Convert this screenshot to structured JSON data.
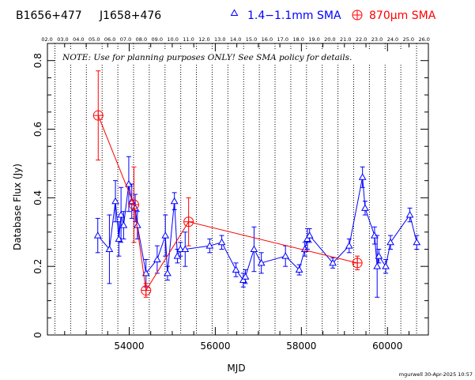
{
  "header": {
    "source_name": "B1656+477",
    "alt_name": "J1658+476",
    "legend_blue": "1.4−1.1mm SMA",
    "legend_red_prefix": "870",
    "legend_red_unit": "μm",
    "legend_red_suffix": " SMA"
  },
  "note": "NOTE: Use for planning purposes ONLY! See SMA policy for details.",
  "footer": "mgurwell 30-Apr-2025 10:57",
  "colors": {
    "blue_series": "#0000ff",
    "red_series": "#ff0000",
    "axis": "#000000",
    "gridlines": "#000000"
  },
  "chart_data": {
    "type": "scatter",
    "title": "",
    "xlabel": "MJD",
    "ylabel": "Database Flux (Jy)",
    "xlim": [
      52100,
      60950
    ],
    "ylim": [
      0,
      0.85
    ],
    "x_ticks": [
      54000,
      56000,
      58000,
      60000
    ],
    "y_ticks": [
      0,
      0.2,
      0.4,
      0.6,
      0.8
    ],
    "y_tick_labels": [
      "0",
      "0.2",
      "0.4",
      "0.6",
      "0.8"
    ],
    "top_axis_labels": [
      "02.0",
      "03.0",
      "04.0",
      "05.0",
      "06.0",
      "07.0",
      "08.0",
      "09.0",
      "10.0",
      "11.0",
      "12.0",
      "13.0",
      "14.0",
      "15.0",
      "16.0",
      "17.0",
      "18.0",
      "19.0",
      "20.0",
      "21.0",
      "22.0",
      "23.0",
      "24.0",
      "25.0",
      "26.0"
    ],
    "year_gridline_mjd": [
      52275,
      52640,
      53005,
      53371,
      53736,
      54101,
      54466,
      54832,
      55197,
      55562,
      55927,
      56293,
      56658,
      57023,
      57388,
      57754,
      58119,
      58484,
      58849,
      59215,
      59580,
      59945,
      60310,
      60676
    ],
    "grid": "dotted vertical lines at each year",
    "legend": "top-right, above plot",
    "series": [
      {
        "name": "1.4−1.1mm SMA",
        "marker": "triangle",
        "connected": true,
        "x": [
          53270,
          53540,
          53680,
          53760,
          53810,
          53870,
          53990,
          54060,
          54140,
          54190,
          54390,
          54650,
          54840,
          54890,
          55050,
          55120,
          55190,
          55300,
          55870,
          56150,
          56480,
          56650,
          56700,
          56900,
          57070,
          57630,
          57950,
          58080,
          58140,
          58190,
          58730,
          59110,
          59420,
          59480,
          59700,
          59760,
          59800,
          59960,
          60070,
          60520,
          60680
        ],
        "y": [
          0.29,
          0.25,
          0.39,
          0.28,
          0.35,
          0.32,
          0.44,
          0.39,
          0.37,
          0.32,
          0.18,
          0.22,
          0.29,
          0.18,
          0.39,
          0.23,
          0.25,
          0.25,
          0.26,
          0.27,
          0.19,
          0.16,
          0.17,
          0.25,
          0.21,
          0.23,
          0.19,
          0.25,
          0.28,
          0.29,
          0.21,
          0.26,
          0.46,
          0.37,
          0.29,
          0.2,
          0.23,
          0.2,
          0.27,
          0.35,
          0.27
        ],
        "err": [
          0.05,
          0.1,
          0.06,
          0.05,
          0.08,
          0.04,
          0.08,
          0.05,
          0.04,
          0.04,
          0.04,
          0.04,
          0.06,
          0.02,
          0.025,
          0.02,
          0.02,
          0.05,
          0.02,
          0.02,
          0.02,
          0.02,
          0.02,
          0.065,
          0.03,
          0.03,
          0.015,
          0.02,
          0.03,
          0.02,
          0.015,
          0.02,
          0.03,
          0.02,
          0.025,
          0.09,
          0.02,
          0.02,
          0.02,
          0.02,
          0.02
        ]
      },
      {
        "name": "870μm SMA",
        "marker": "circle-plus",
        "connected": true,
        "x": [
          53280,
          54110,
          54390,
          55380,
          59300
        ],
        "y": [
          0.64,
          0.38,
          0.13,
          0.33,
          0.21
        ],
        "err": [
          0.13,
          0.11,
          0.02,
          0.07,
          0.02
        ]
      }
    ]
  }
}
